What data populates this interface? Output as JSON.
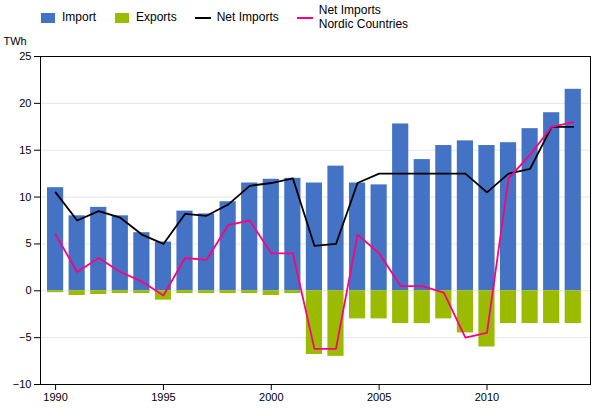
{
  "chart_data": {
    "type": "bar",
    "ylabel": "TWh",
    "x": [
      1990,
      1991,
      1992,
      1993,
      1994,
      1995,
      1996,
      1997,
      1998,
      1999,
      2000,
      2001,
      2002,
      2003,
      2004,
      2005,
      2006,
      2007,
      2008,
      2009,
      2010,
      2011,
      2012,
      2013,
      2014
    ],
    "series": [
      {
        "name": "Import",
        "type": "bar",
        "color": "#4472C4",
        "values": [
          11.0,
          8.0,
          8.9,
          8.0,
          6.2,
          5.2,
          8.5,
          8.2,
          9.5,
          11.5,
          11.9,
          12.0,
          11.5,
          13.3,
          11.5,
          11.3,
          17.8,
          14.0,
          15.5,
          16.0,
          15.5,
          15.8,
          17.3,
          19.0,
          21.5
        ]
      },
      {
        "name": "Exports",
        "type": "bar",
        "color": "#9BBB00",
        "values": [
          -0.2,
          -0.5,
          -0.4,
          -0.3,
          -0.3,
          -1.0,
          -0.3,
          -0.3,
          -0.3,
          -0.3,
          -0.5,
          -0.3,
          -6.8,
          -7.0,
          -3.0,
          -3.0,
          -3.5,
          -3.5,
          -3.0,
          -4.5,
          -6.0,
          -3.5,
          -3.5,
          -3.5,
          -3.5
        ]
      },
      {
        "name": "Net Imports",
        "type": "line",
        "color": "#000000",
        "values": [
          10.5,
          7.5,
          8.5,
          7.8,
          6.0,
          5.0,
          8.2,
          8.0,
          9.2,
          11.2,
          11.5,
          12.0,
          4.8,
          5.0,
          11.5,
          12.5,
          12.5,
          12.5,
          12.5,
          12.5,
          10.5,
          12.5,
          13.0,
          17.5,
          17.5
        ]
      },
      {
        "name": "Net Imports\nNordic Countries",
        "type": "line",
        "color": "#FF0080",
        "values": [
          6.0,
          2.0,
          3.5,
          2.0,
          1.0,
          -0.5,
          3.5,
          3.3,
          7.0,
          7.5,
          4.0,
          4.0,
          -6.2,
          -6.2,
          6.0,
          4.0,
          0.5,
          0.5,
          -0.2,
          -5.0,
          -4.5,
          12.0,
          14.5,
          17.5,
          18.0
        ]
      }
    ],
    "xlim": [
      1989.3,
      2014.8
    ],
    "xticks": [
      1990,
      1995,
      2000,
      2005,
      2010
    ],
    "ylim": [
      -10,
      25
    ],
    "yticks": [
      -10,
      -5,
      0,
      5,
      10,
      15,
      20,
      25
    ],
    "grid": true,
    "legend": "upper left"
  }
}
